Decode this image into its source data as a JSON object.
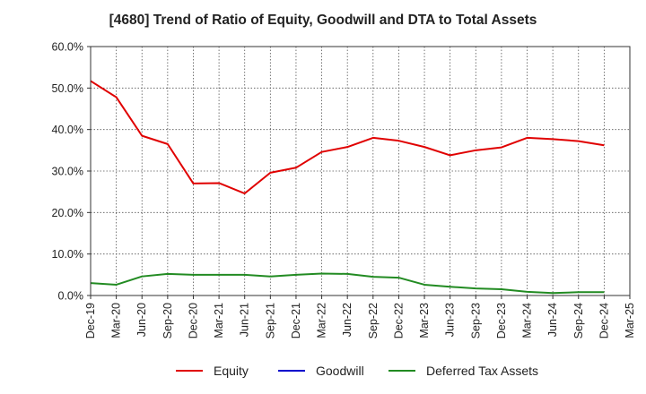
{
  "chart_data": {
    "type": "line",
    "title": "[4680]  Trend of Ratio of Equity, Goodwill and DTA to Total Assets",
    "xlabel": "",
    "ylabel": "",
    "ylim": [
      0,
      60
    ],
    "y_ticks": [
      "0.0%",
      "10.0%",
      "20.0%",
      "30.0%",
      "40.0%",
      "50.0%",
      "60.0%"
    ],
    "categories": [
      "Dec-19",
      "Mar-20",
      "Jun-20",
      "Sep-20",
      "Dec-20",
      "Mar-21",
      "Jun-21",
      "Sep-21",
      "Dec-21",
      "Mar-22",
      "Jun-22",
      "Sep-22",
      "Dec-22",
      "Mar-23",
      "Jun-23",
      "Sep-23",
      "Dec-23",
      "Mar-24",
      "Jun-24",
      "Sep-24",
      "Dec-24",
      "Mar-25"
    ],
    "grid": true,
    "legend_position": "bottom",
    "series": [
      {
        "name": "Equity",
        "color": "#e00000",
        "values": [
          51.7,
          47.8,
          38.5,
          36.5,
          27.0,
          27.1,
          24.6,
          29.6,
          30.8,
          34.6,
          35.8,
          38.0,
          37.3,
          35.8,
          33.8,
          35.0,
          35.7,
          38.0,
          37.7,
          37.2,
          36.2,
          null
        ]
      },
      {
        "name": "Goodwill",
        "color": "#0000cc",
        "values": [
          null,
          null,
          null,
          null,
          null,
          null,
          null,
          null,
          null,
          null,
          null,
          null,
          null,
          null,
          null,
          null,
          null,
          null,
          null,
          null,
          null,
          null
        ]
      },
      {
        "name": "Deferred Tax Assets",
        "color": "#228b22",
        "values": [
          3.0,
          2.6,
          4.6,
          5.2,
          5.0,
          5.0,
          5.0,
          4.6,
          5.0,
          5.3,
          5.2,
          4.5,
          4.3,
          2.6,
          2.1,
          1.7,
          1.5,
          0.9,
          0.6,
          0.8,
          0.8,
          null
        ]
      }
    ]
  }
}
